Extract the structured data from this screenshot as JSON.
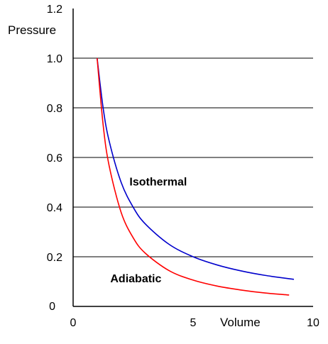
{
  "chart_data": {
    "type": "line",
    "title": "",
    "xlabel": "Volume",
    "ylabel": "Pressure",
    "xlim": [
      0,
      10
    ],
    "ylim": [
      0,
      1.2
    ],
    "x_ticks": [
      {
        "value": 0,
        "label": "0"
      },
      {
        "value": 5,
        "label": "5"
      },
      {
        "value": 10,
        "label": "10"
      }
    ],
    "y_ticks": [
      {
        "value": 0,
        "label": "0"
      },
      {
        "value": 0.2,
        "label": "0.2"
      },
      {
        "value": 0.4,
        "label": "0.4"
      },
      {
        "value": 0.6,
        "label": "0.6"
      },
      {
        "value": 0.8,
        "label": "0.8"
      },
      {
        "value": 1.0,
        "label": "1.0"
      },
      {
        "value": 1.2,
        "label": "1.2"
      }
    ],
    "gridlines_y": [
      0.2,
      0.4,
      0.6,
      0.8,
      1.0
    ],
    "grid": true,
    "series": [
      {
        "name": "Isothermal",
        "color": "#0000cc",
        "x": [
          1.0,
          1.25,
          1.5,
          2.0,
          2.5,
          3.0,
          4.0,
          5.0,
          6.0,
          7.0,
          8.0,
          9.2
        ],
        "y": [
          1.0,
          0.8,
          0.667,
          0.5,
          0.4,
          0.333,
          0.25,
          0.2,
          0.167,
          0.143,
          0.125,
          0.109
        ]
      },
      {
        "name": "Adiabatic",
        "color": "#ff0000",
        "x": [
          1.0,
          1.25,
          1.5,
          2.0,
          2.5,
          3.0,
          4.0,
          5.0,
          6.0,
          7.0,
          8.0,
          9.0
        ],
        "y": [
          1.0,
          0.732,
          0.567,
          0.379,
          0.277,
          0.215,
          0.144,
          0.106,
          0.082,
          0.066,
          0.054,
          0.046
        ]
      }
    ],
    "annotations": [
      {
        "text": "Isothermal",
        "x": 2.35,
        "y": 0.505
      },
      {
        "text": "Adiabatic",
        "x": 1.55,
        "y": 0.115
      }
    ]
  }
}
